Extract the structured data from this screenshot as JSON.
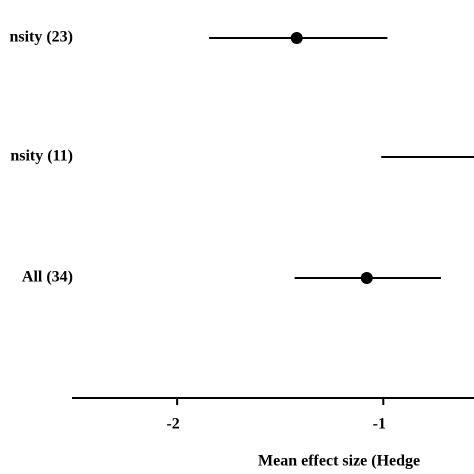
{
  "chart_data": {
    "type": "forest",
    "categories": [
      "nsity (23)",
      "nsity (11)",
      "All (34)"
    ],
    "values": [
      -1.42,
      null,
      -1.08
    ],
    "lower": [
      -1.845,
      -1.01,
      -1.43
    ],
    "upper": [
      -0.98,
      null,
      -0.72
    ],
    "color": "#000000",
    "xlabel": "Mean effect size (Hedge",
    "xlim": [
      -2.51,
      -0.56
    ],
    "xticks": [
      -2,
      -1
    ]
  }
}
